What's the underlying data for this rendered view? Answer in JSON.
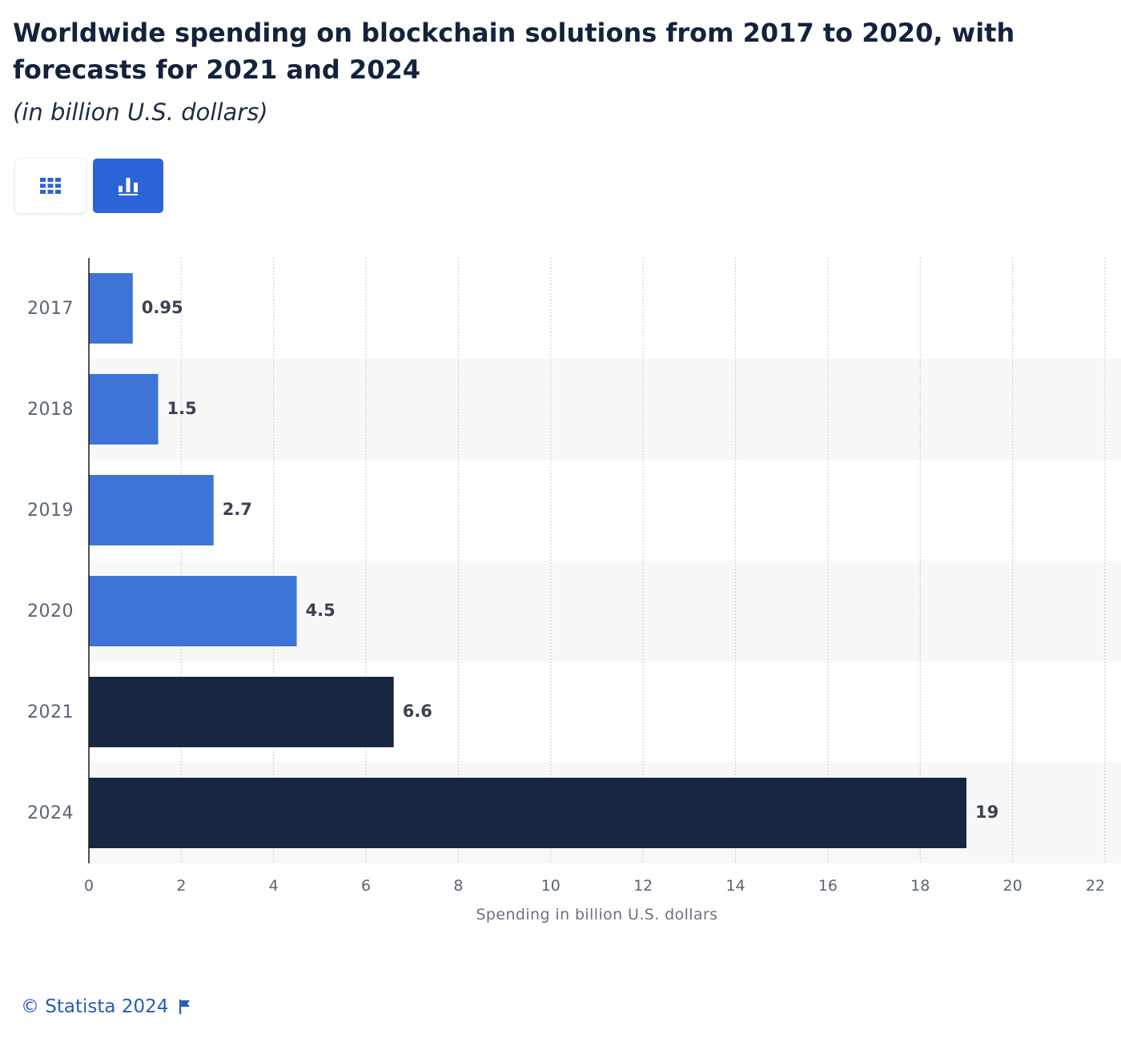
{
  "header": {
    "title": "Worldwide spending on blockchain solutions from 2017 to 2020, with forecasts for 2021 and 2024",
    "subtitle": "(in billion U.S. dollars)"
  },
  "view_toggle": {
    "table_icon": "table-grid-icon",
    "chart_icon": "bar-chart-icon",
    "active": "chart"
  },
  "colors": {
    "actual": "#3e74d8",
    "forecast": "#172740",
    "band": "#f8f8f8",
    "toggle_active": "#2b63d9",
    "credit": "#2a5bb8"
  },
  "chart_data": {
    "type": "bar",
    "orientation": "horizontal",
    "title": "Worldwide spending on blockchain solutions from 2017 to 2020, with forecasts for 2021 and 2024",
    "subtitle": "(in billion U.S. dollars)",
    "categories": [
      "2017",
      "2018",
      "2019",
      "2020",
      "2021",
      "2024"
    ],
    "values": [
      0.95,
      1.5,
      2.7,
      4.5,
      6.6,
      19
    ],
    "value_labels": [
      "0.95",
      "1.5",
      "2.7",
      "4.5",
      "6.6",
      "19"
    ],
    "forecast": [
      false,
      false,
      false,
      false,
      true,
      true
    ],
    "xlabel": "Spending in billion U.S. dollars",
    "ylabel": "",
    "xlim": [
      0,
      22
    ],
    "xticks": [
      0,
      2,
      4,
      6,
      8,
      10,
      12,
      14,
      16,
      18,
      20,
      22
    ],
    "grid": true,
    "legend": "none"
  },
  "footer": {
    "credit": "© Statista 2024",
    "flag_icon": "flag-icon"
  }
}
